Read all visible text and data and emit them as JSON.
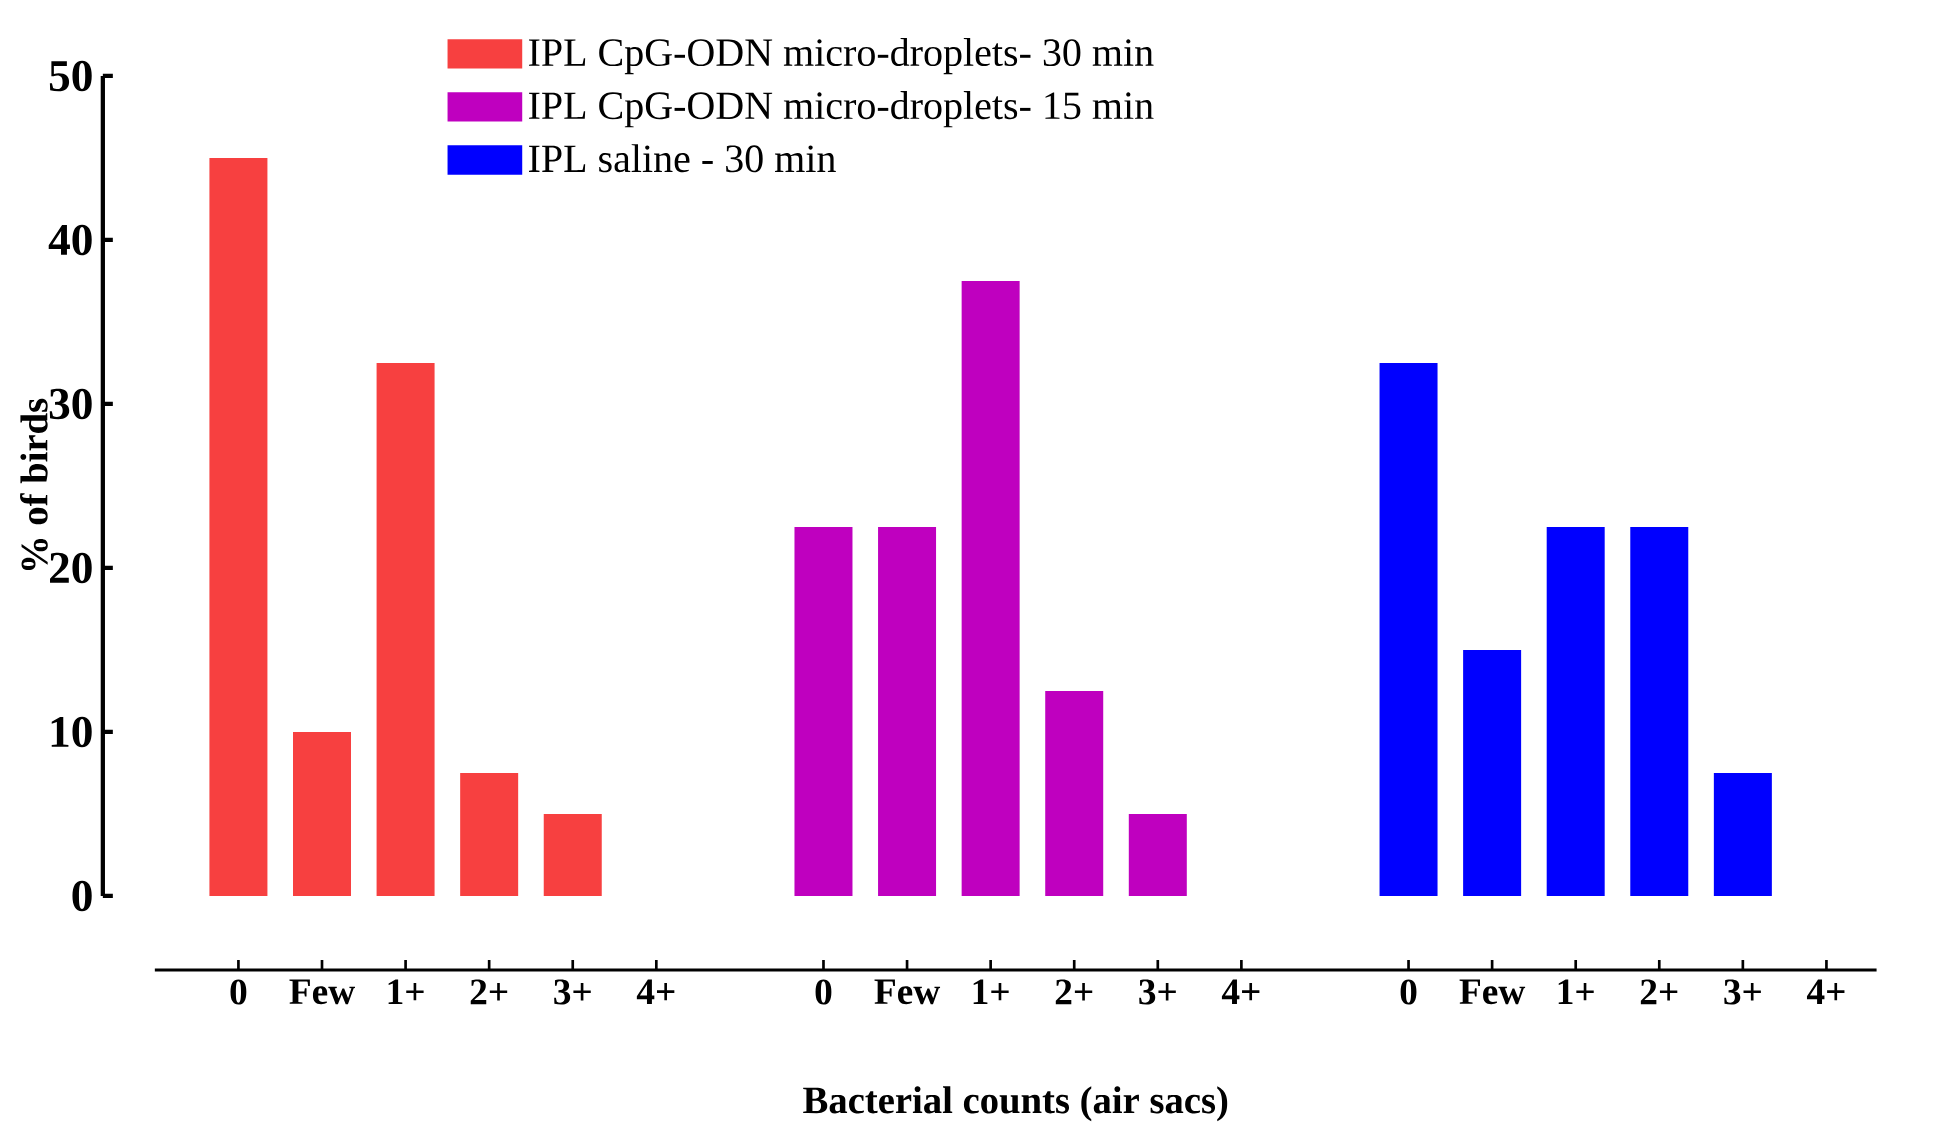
{
  "chart_data": {
    "type": "bar",
    "xlabel": "Bacterial counts (air sacs)",
    "ylabel": "% of birds",
    "categories": [
      "0",
      "Few",
      "1+",
      "2+",
      "3+",
      "4+",
      null,
      "0",
      "Few",
      "1+",
      "2+",
      "3+",
      "4+",
      null,
      "0",
      "Few",
      "1+",
      "2+",
      "3+",
      "4+"
    ],
    "series": [
      {
        "name": "IPL CpG-ODN micro-droplets- 30 min",
        "color": "#f74040",
        "values": [
          45,
          10,
          32.5,
          7.5,
          5,
          0,
          null,
          null,
          null,
          null,
          null,
          null,
          null,
          null,
          null,
          null,
          null,
          null,
          null,
          null
        ]
      },
      {
        "name": "IPL CpG-ODN micro-droplets- 15 min",
        "color": "#bf00bf",
        "values": [
          null,
          null,
          null,
          null,
          null,
          null,
          null,
          22.5,
          22.5,
          37.5,
          12.5,
          5,
          0,
          null,
          null,
          null,
          null,
          null,
          null,
          null
        ]
      },
      {
        "name": "IPL saline - 30 min",
        "color": "#0000ff",
        "values": [
          null,
          null,
          null,
          null,
          null,
          null,
          null,
          null,
          null,
          null,
          null,
          null,
          null,
          null,
          32.5,
          15,
          22.5,
          22.5,
          7.5,
          0
        ]
      }
    ],
    "ylim": [
      0,
      50
    ],
    "yticks": [
      0,
      10,
      20,
      30,
      40,
      50
    ],
    "grid": false,
    "legend": "top"
  }
}
